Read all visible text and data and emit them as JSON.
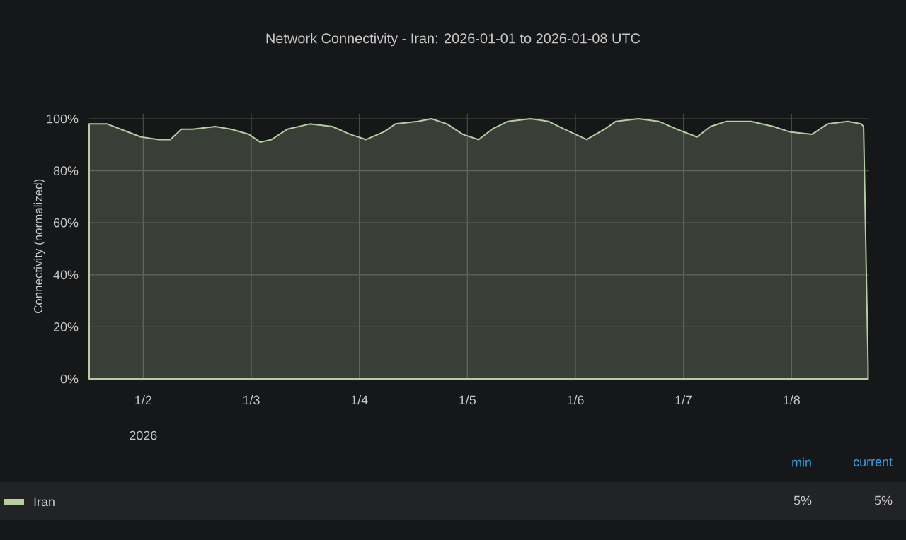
{
  "chart_data": {
    "type": "area",
    "title": "Network Connectivity - Iran: 2026-01-01 to 2026-01-08 UTC",
    "ylabel": "Connectivity (normalized)",
    "x": [
      "2026-01-01T12:00",
      "2026-01-01T16:00",
      "2026-01-01T19:00",
      "2026-01-01T23:30",
      "2026-01-02T03:30",
      "2026-01-02T06:00",
      "2026-01-02T08:30",
      "2026-01-02T11:00",
      "2026-01-02T16:00",
      "2026-01-02T19:30",
      "2026-01-02T23:30",
      "2026-01-03T02:00",
      "2026-01-03T04:30",
      "2026-01-03T08:00",
      "2026-01-03T13:00",
      "2026-01-03T18:00",
      "2026-01-03T22:00",
      "2026-01-04T01:30",
      "2026-01-04T05:30",
      "2026-01-04T08:00",
      "2026-01-04T13:00",
      "2026-01-04T16:00",
      "2026-01-04T19:30",
      "2026-01-04T23:00",
      "2026-01-05T02:30",
      "2026-01-05T05:30",
      "2026-01-05T09:00",
      "2026-01-05T14:00",
      "2026-01-05T18:00",
      "2026-01-05T21:30",
      "2026-01-06T02:30",
      "2026-01-06T06:30",
      "2026-01-06T09:00",
      "2026-01-06T14:00",
      "2026-01-06T18:30",
      "2026-01-06T22:30",
      "2026-01-07T03:00",
      "2026-01-07T06:00",
      "2026-01-07T09:30",
      "2026-01-07T15:00",
      "2026-01-07T20:00",
      "2026-01-07T23:30",
      "2026-01-08T04:30",
      "2026-01-08T08:00",
      "2026-01-08T12:30",
      "2026-01-08T15:30",
      "2026-01-08T16:00",
      "2026-01-08T17:00"
    ],
    "series": [
      {
        "name": "Iran",
        "color": "#b5cda0",
        "values": [
          98,
          98,
          96,
          93,
          92,
          92,
          96,
          96,
          97,
          96,
          94,
          91,
          92,
          96,
          98,
          97,
          94,
          92,
          95,
          98,
          99,
          100,
          98,
          94,
          92,
          96,
          99,
          100,
          99,
          96,
          92,
          96,
          99,
          100,
          99,
          96,
          93,
          97,
          99,
          99,
          97,
          95,
          94,
          98,
          99,
          98,
          97,
          5
        ]
      }
    ],
    "xlim": [
      "2026-01-01T12:00",
      "2026-01-08T17:15"
    ],
    "xticks": [
      {
        "value": "2026-01-02",
        "label": "1/2"
      },
      {
        "value": "2026-01-03",
        "label": "1/3"
      },
      {
        "value": "2026-01-04",
        "label": "1/4"
      },
      {
        "value": "2026-01-05",
        "label": "1/5"
      },
      {
        "value": "2026-01-06",
        "label": "1/6"
      },
      {
        "value": "2026-01-07",
        "label": "1/7"
      },
      {
        "value": "2026-01-08",
        "label": "1/8"
      }
    ],
    "ylim": [
      0,
      102
    ],
    "yticks": [
      {
        "value": 0,
        "label": "0%"
      },
      {
        "value": 20,
        "label": "20%"
      },
      {
        "value": 40,
        "label": "40%"
      },
      {
        "value": 60,
        "label": "60%"
      },
      {
        "value": 80,
        "label": "80%"
      },
      {
        "value": 100,
        "label": "100%"
      }
    ],
    "grid": true,
    "legend": "bottom",
    "annotations": [
      "2026",
      "min",
      "current",
      "5%",
      "5%"
    ]
  }
}
